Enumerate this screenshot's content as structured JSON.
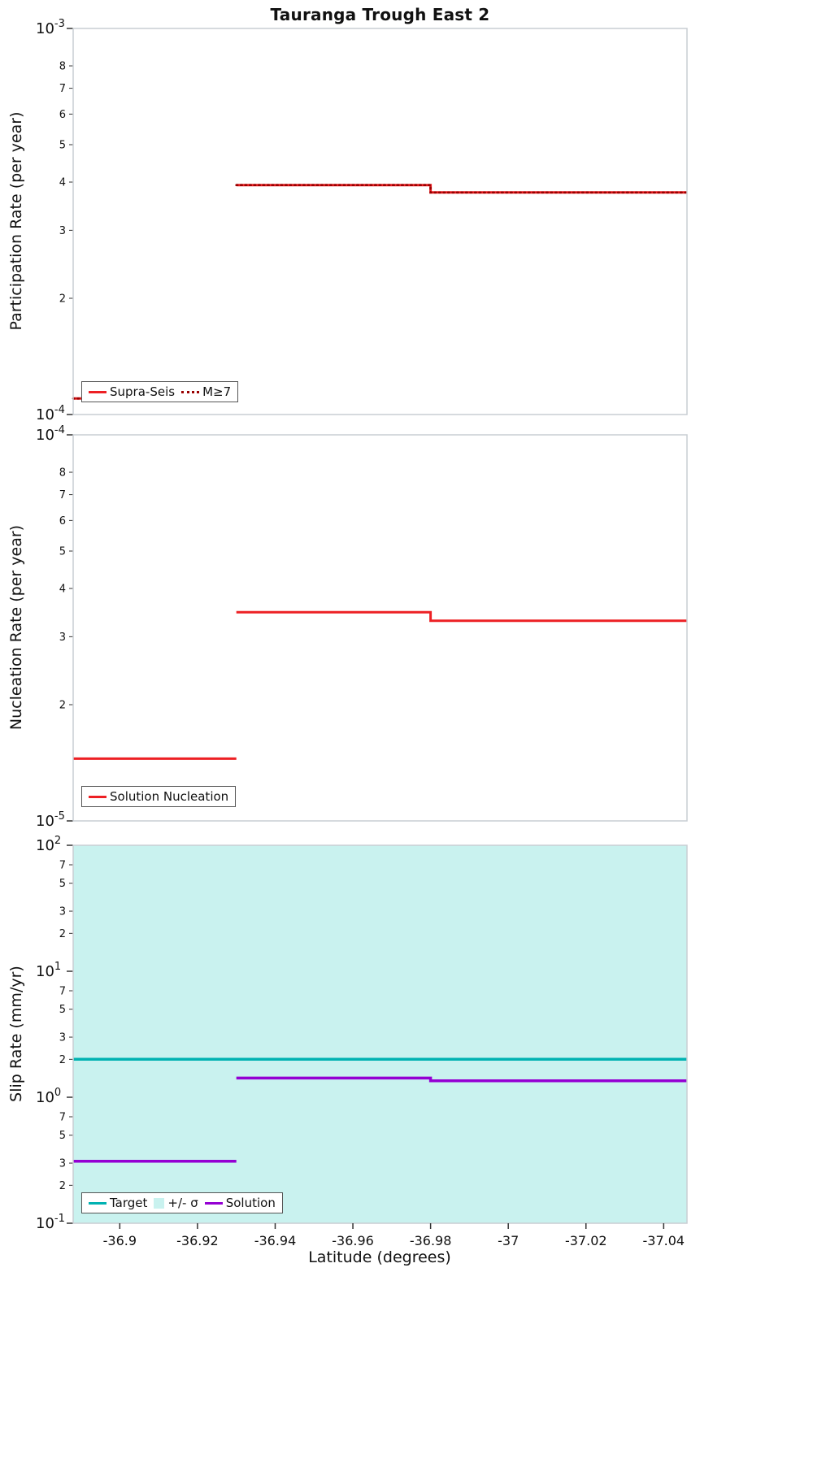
{
  "title": "Tauranga Trough East 2",
  "xlabel": "Latitude (degrees)",
  "colors": {
    "red": "#ed2024",
    "dark_red": "#990000",
    "teal": "#00b2b2",
    "purple": "#9400d3",
    "band": "#c9f2ef",
    "frame": "#c9ced3",
    "text": "#111111"
  },
  "x_axis": {
    "range": [
      -36.888,
      -37.046
    ],
    "ticks": [
      {
        "v": -36.9,
        "label": "-36.9"
      },
      {
        "v": -36.92,
        "label": "-36.92"
      },
      {
        "v": -36.94,
        "label": "-36.94"
      },
      {
        "v": -36.96,
        "label": "-36.96"
      },
      {
        "v": -36.98,
        "label": "-36.98"
      },
      {
        "v": -37.0,
        "label": "-37"
      },
      {
        "v": -37.02,
        "label": "-37.02"
      },
      {
        "v": -37.04,
        "label": "-37.04"
      }
    ]
  },
  "chart_data": [
    {
      "name": "participation",
      "type": "line",
      "ylabel": "Participation Rate (per year)",
      "yaxis": {
        "scale": "log",
        "range": [
          0.0001,
          0.001
        ],
        "major_ticks": [
          {
            "v": 0.001,
            "mantissa": "10",
            "exp": "-3"
          },
          {
            "v": 0.0001,
            "mantissa": "10",
            "exp": "-4"
          }
        ],
        "minor_ticks": [
          {
            "v": 0.0008,
            "label": "8"
          },
          {
            "v": 0.0007,
            "label": "7"
          },
          {
            "v": 0.0006,
            "label": "6"
          },
          {
            "v": 0.0005,
            "label": "5"
          },
          {
            "v": 0.0004,
            "label": "4"
          },
          {
            "v": 0.0003,
            "label": "3"
          },
          {
            "v": 0.0002,
            "label": "2"
          }
        ]
      },
      "series": [
        {
          "name": "Supra-Seis",
          "color": "red",
          "dash": "solid",
          "width": 3,
          "polylines": [
            [
              [
                -36.888,
                0.00011
              ],
              [
                -36.93,
                0.00011
              ]
            ],
            [
              [
                -36.93,
                0.000393
              ],
              [
                -36.98,
                0.000393
              ],
              [
                -36.98,
                0.000376
              ],
              [
                -37.046,
                0.000376
              ]
            ]
          ]
        },
        {
          "name": "M≥7",
          "color": "dark_red",
          "dash": "dotted",
          "width": 2.6,
          "polylines": [
            [
              [
                -36.888,
                0.00011
              ],
              [
                -36.93,
                0.00011
              ]
            ],
            [
              [
                -36.93,
                0.000393
              ],
              [
                -36.98,
                0.000393
              ],
              [
                -36.98,
                0.000376
              ],
              [
                -37.046,
                0.000376
              ]
            ]
          ]
        }
      ],
      "legend": {
        "items": [
          {
            "label": "Supra-Seis",
            "swatch": "line",
            "color": "red"
          },
          {
            "label": "M≥7",
            "swatch": "dotted",
            "color": "dark_red"
          }
        ]
      }
    },
    {
      "name": "nucleation",
      "type": "line",
      "ylabel": "Nucleation Rate (per year)",
      "yaxis": {
        "scale": "log",
        "range": [
          1e-05,
          0.0001
        ],
        "major_ticks": [
          {
            "v": 0.0001,
            "mantissa": "10",
            "exp": "-4"
          },
          {
            "v": 1e-05,
            "mantissa": "10",
            "exp": "-5"
          }
        ],
        "minor_ticks": [
          {
            "v": 8e-05,
            "label": "8"
          },
          {
            "v": 7e-05,
            "label": "7"
          },
          {
            "v": 6e-05,
            "label": "6"
          },
          {
            "v": 5e-05,
            "label": "5"
          },
          {
            "v": 4e-05,
            "label": "4"
          },
          {
            "v": 3e-05,
            "label": "3"
          },
          {
            "v": 2e-05,
            "label": "2"
          }
        ]
      },
      "series": [
        {
          "name": "Solution Nucleation",
          "color": "red",
          "dash": "solid",
          "width": 3,
          "polylines": [
            [
              [
                -36.888,
                1.45e-05
              ],
              [
                -36.93,
                1.45e-05
              ]
            ],
            [
              [
                -36.93,
                3.47e-05
              ],
              [
                -36.98,
                3.47e-05
              ],
              [
                -36.98,
                3.3e-05
              ],
              [
                -37.046,
                3.3e-05
              ]
            ]
          ]
        }
      ],
      "legend": {
        "items": [
          {
            "label": "Solution Nucleation",
            "swatch": "line",
            "color": "red"
          }
        ]
      }
    },
    {
      "name": "slip-rate",
      "type": "line",
      "ylabel": "Slip Rate (mm/yr)",
      "sigma_band": {
        "label": "+/- σ",
        "covers_full_plot": true,
        "color": "band"
      },
      "yaxis": {
        "scale": "log",
        "range": [
          0.1,
          100
        ],
        "major_ticks": [
          {
            "v": 100,
            "mantissa": "10",
            "exp": "2"
          },
          {
            "v": 10,
            "mantissa": "10",
            "exp": "1"
          },
          {
            "v": 1,
            "mantissa": "10",
            "exp": "0"
          },
          {
            "v": 0.1,
            "mantissa": "10",
            "exp": "-1"
          }
        ],
        "minor_ticks": [
          {
            "v": 70,
            "label": "7"
          },
          {
            "v": 50,
            "label": "5"
          },
          {
            "v": 30,
            "label": "3"
          },
          {
            "v": 20,
            "label": "2"
          },
          {
            "v": 7,
            "label": "7"
          },
          {
            "v": 5,
            "label": "5"
          },
          {
            "v": 3,
            "label": "3"
          },
          {
            "v": 2,
            "label": "2"
          },
          {
            "v": 0.7,
            "label": "7"
          },
          {
            "v": 0.5,
            "label": "5"
          },
          {
            "v": 0.3,
            "label": "3"
          },
          {
            "v": 0.2,
            "label": "2"
          }
        ]
      },
      "series": [
        {
          "name": "Target",
          "color": "teal",
          "dash": "solid",
          "width": 3.5,
          "polylines": [
            [
              [
                -36.888,
                2.0
              ],
              [
                -37.046,
                2.0
              ]
            ]
          ]
        },
        {
          "name": "Solution",
          "color": "purple",
          "dash": "solid",
          "width": 3.5,
          "polylines": [
            [
              [
                -36.888,
                0.31
              ],
              [
                -36.93,
                0.31
              ]
            ],
            [
              [
                -36.93,
                1.42
              ],
              [
                -36.98,
                1.42
              ],
              [
                -36.98,
                1.35
              ],
              [
                -37.046,
                1.35
              ]
            ]
          ]
        }
      ],
      "legend": {
        "items": [
          {
            "label": "Target",
            "swatch": "line",
            "color": "teal"
          },
          {
            "label": "+/- σ",
            "swatch": "patch",
            "color": "band"
          },
          {
            "label": "Solution",
            "swatch": "line",
            "color": "purple"
          }
        ]
      }
    }
  ]
}
